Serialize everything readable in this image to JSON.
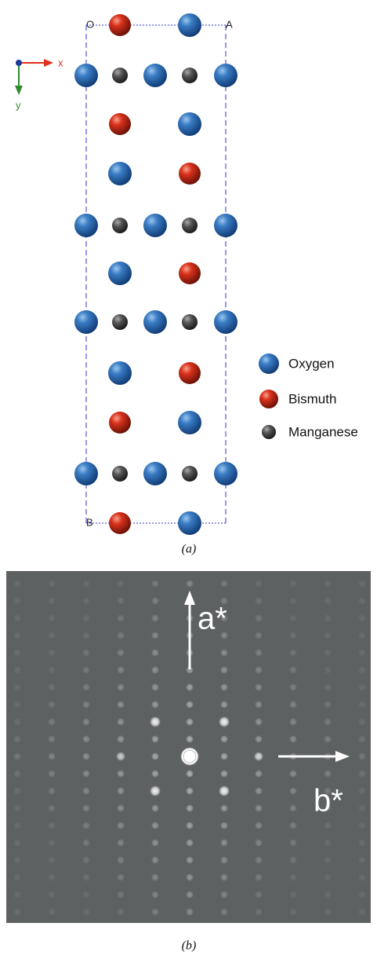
{
  "panel_a": {
    "corner_labels": {
      "origin": "O",
      "a": "A",
      "b": "B"
    },
    "axes": {
      "x": "x",
      "y": "y"
    },
    "legend": [
      "Oxygen",
      "Bismuth",
      "Manganese"
    ],
    "caption": "(a)"
  },
  "panel_b": {
    "arrow_labels": {
      "vertical": "a*",
      "horizontal": "b*"
    },
    "caption": "(b)"
  }
}
